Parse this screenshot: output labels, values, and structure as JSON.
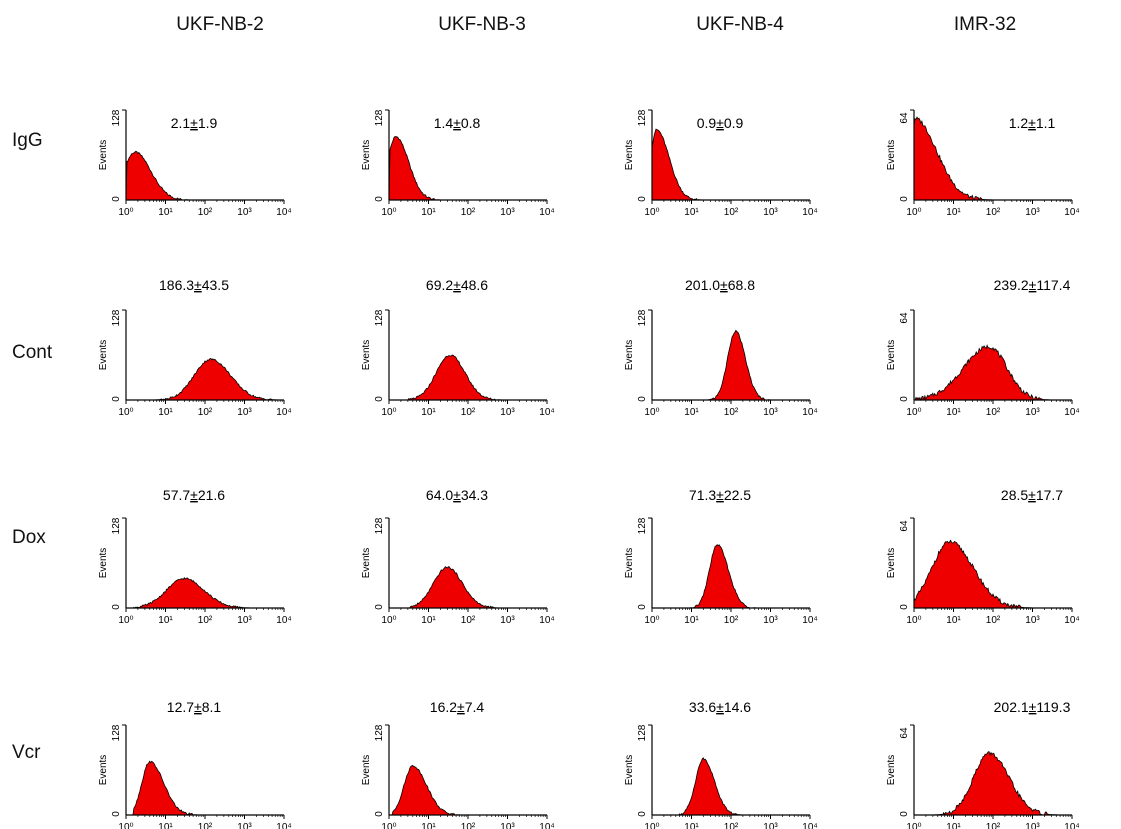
{
  "columns": [
    "UKF-NB-2",
    "UKF-NB-3",
    "UKF-NB-4",
    "IMR-32"
  ],
  "rows": [
    "IgG",
    "Cont",
    "Dox",
    "Vcr"
  ],
  "chart_data": {
    "type": "area",
    "ylabel": "Events",
    "xscale": "log",
    "xlim": [
      1,
      10000
    ],
    "xticks": [
      "10⁰",
      "10¹",
      "10²",
      "10³",
      "10⁴"
    ],
    "colors": {
      "fill": "#ee0000",
      "outline": "#000000",
      "axis": "#000000"
    },
    "panels": [
      {
        "row": "IgG",
        "column": "UKF-NB-2",
        "ymax": "128",
        "label_pre": "2.1",
        "label_pm": "±",
        "label_post": "1.9",
        "peak_x": 1.7,
        "peak_y": 68,
        "width_left": 0.3,
        "width_right": 0.4,
        "tail": 4,
        "start_x": 1.05
      },
      {
        "row": "IgG",
        "column": "UKF-NB-3",
        "ymax": "128",
        "label_pre": "1.4",
        "label_pm": "±",
        "label_post": "0.8",
        "peak_x": 1.5,
        "peak_y": 90,
        "width_left": 0.22,
        "width_right": 0.32,
        "tail": 3,
        "start_x": 1.05
      },
      {
        "row": "IgG",
        "column": "UKF-NB-4",
        "ymax": "128",
        "label_pre": "0.9",
        "label_pm": "±",
        "label_post": "0.9",
        "peak_x": 1.3,
        "peak_y": 100,
        "width_left": 0.15,
        "width_right": 0.32,
        "tail": 3,
        "start_x": 1.0
      },
      {
        "row": "IgG",
        "column": "IMR-32",
        "ymax": "64",
        "label_pre": "1.2",
        "label_pm": "±",
        "label_post": "1.1",
        "peak_x": 1.05,
        "peak_y": 58,
        "width_left": 0.05,
        "width_right": 0.55,
        "tail": 4,
        "start_x": 1.0
      },
      {
        "row": "Cont",
        "column": "UKF-NB-2",
        "ymax": "128",
        "label_pre": "186.3",
        "label_pm": "±",
        "label_post": "43.5",
        "peak_x": 140,
        "peak_y": 58,
        "width_left": 0.42,
        "width_right": 0.5,
        "tail": 2,
        "start_x": 5
      },
      {
        "row": "Cont",
        "column": "UKF-NB-3",
        "ymax": "128",
        "label_pre": "69.2",
        "label_pm": "±",
        "label_post": "48.6",
        "peak_x": 35,
        "peak_y": 64,
        "width_left": 0.35,
        "width_right": 0.38,
        "tail": 2,
        "start_x": 3
      },
      {
        "row": "Cont",
        "column": "UKF-NB-4",
        "ymax": "128",
        "label_pre": "201.0",
        "label_pm": "±",
        "label_post": "68.8",
        "peak_x": 130,
        "peak_y": 98,
        "width_left": 0.2,
        "width_right": 0.25,
        "tail": 2,
        "start_x": 10
      },
      {
        "row": "Cont",
        "column": "IMR-32",
        "ymax": "64",
        "label_pre": "239.2",
        "label_pm": "±",
        "label_post": "117.4",
        "peak_x": 80,
        "peak_y": 38,
        "width_left": 0.65,
        "width_right": 0.45,
        "tail": 3,
        "start_x": 1.0
      },
      {
        "row": "Dox",
        "column": "UKF-NB-2",
        "ymax": "128",
        "label_pre": "57.7",
        "label_pm": "±",
        "label_post": "21.6",
        "peak_x": 30,
        "peak_y": 42,
        "width_left": 0.45,
        "width_right": 0.5,
        "tail": 2,
        "start_x": 1.5
      },
      {
        "row": "Dox",
        "column": "UKF-NB-3",
        "ymax": "128",
        "label_pre": "64.0",
        "label_pm": "±",
        "label_post": "34.3",
        "peak_x": 30,
        "peak_y": 58,
        "width_left": 0.35,
        "width_right": 0.38,
        "tail": 2,
        "start_x": 3
      },
      {
        "row": "Dox",
        "column": "UKF-NB-4",
        "ymax": "128",
        "label_pre": "71.3",
        "label_pm": "±",
        "label_post": "22.5",
        "peak_x": 45,
        "peak_y": 90,
        "width_left": 0.2,
        "width_right": 0.28,
        "tail": 2,
        "start_x": 8
      },
      {
        "row": "Dox",
        "column": "IMR-32",
        "ymax": "64",
        "label_pre": "28.5",
        "label_pm": "±",
        "label_post": "17.7",
        "peak_x": 8,
        "peak_y": 47,
        "width_left": 0.45,
        "width_right": 0.6,
        "tail": 4,
        "start_x": 1.0
      },
      {
        "row": "Vcr",
        "column": "UKF-NB-2",
        "ymax": "128",
        "label_pre": "12.7",
        "label_pm": "±",
        "label_post": "8.1",
        "peak_x": 4,
        "peak_y": 76,
        "width_left": 0.2,
        "width_right": 0.35,
        "tail": 3,
        "start_x": 1.5
      },
      {
        "row": "Vcr",
        "column": "UKF-NB-3",
        "ymax": "128",
        "label_pre": "16.2",
        "label_pm": "±",
        "label_post": "7.4",
        "peak_x": 4,
        "peak_y": 70,
        "width_left": 0.22,
        "width_right": 0.35,
        "tail": 3,
        "start_x": 1.2
      },
      {
        "row": "Vcr",
        "column": "UKF-NB-4",
        "ymax": "128",
        "label_pre": "33.6",
        "label_pm": "±",
        "label_post": "14.6",
        "peak_x": 20,
        "peak_y": 80,
        "width_left": 0.2,
        "width_right": 0.28,
        "tail": 2,
        "start_x": 5
      },
      {
        "row": "Vcr",
        "column": "IMR-32",
        "ymax": "64",
        "label_pre": "202.1",
        "label_pm": "±",
        "label_post": "119.3",
        "peak_x": 80,
        "peak_y": 44,
        "width_left": 0.4,
        "width_right": 0.5,
        "tail": 3,
        "start_x": 1.0
      }
    ]
  }
}
